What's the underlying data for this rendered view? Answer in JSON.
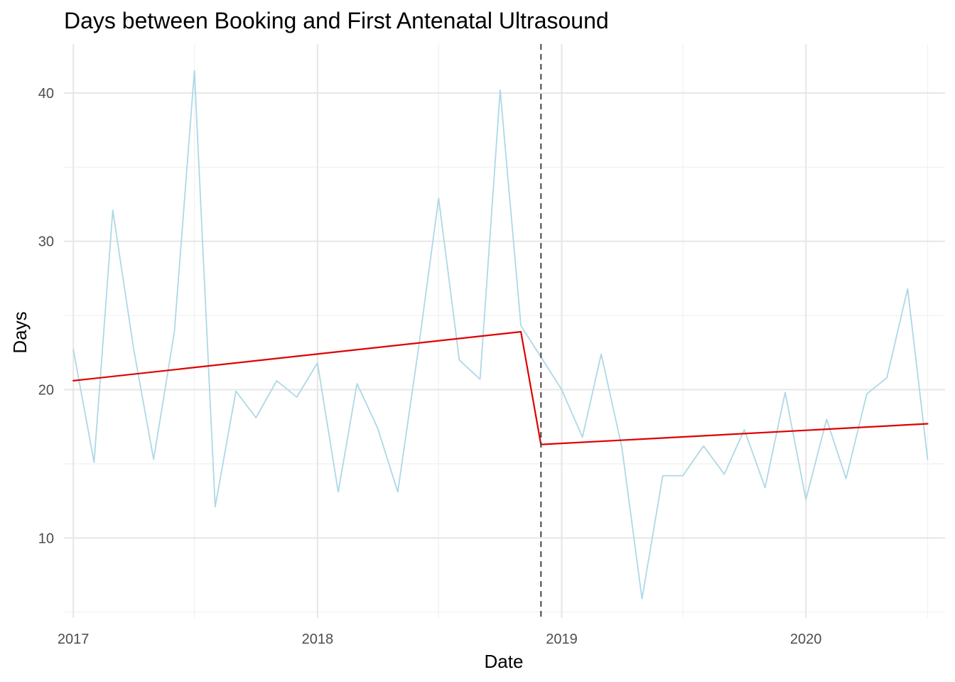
{
  "chart_data": {
    "type": "line",
    "title": "Days between Booking and First Antenatal Ultrasound",
    "xlabel": "Date",
    "ylabel": "Days",
    "x_ticks": [
      "2017",
      "2018",
      "2019",
      "2020"
    ],
    "y_ticks": [
      10,
      20,
      30,
      40
    ],
    "xlim": [
      "2016-12-18",
      "2020-07-27"
    ],
    "ylim": [
      4.6,
      43.3
    ],
    "grid": true,
    "legend": "none",
    "x": [
      "2017-01-01",
      "2017-02-01",
      "2017-03-01",
      "2017-04-01",
      "2017-05-01",
      "2017-06-01",
      "2017-07-01",
      "2017-08-01",
      "2017-09-01",
      "2017-10-01",
      "2017-11-01",
      "2017-12-01",
      "2018-01-01",
      "2018-02-01",
      "2018-03-01",
      "2018-04-01",
      "2018-05-01",
      "2018-06-01",
      "2018-07-01",
      "2018-08-01",
      "2018-09-01",
      "2018-10-01",
      "2018-11-01",
      "2018-12-01",
      "2019-01-01",
      "2019-02-01",
      "2019-03-01",
      "2019-04-01",
      "2019-05-01",
      "2019-06-01",
      "2019-07-01",
      "2019-08-01",
      "2019-09-01",
      "2019-10-01",
      "2019-11-01",
      "2019-12-01",
      "2020-01-01",
      "2020-02-01",
      "2020-03-01",
      "2020-04-01",
      "2020-05-01",
      "2020-06-01",
      "2020-07-01"
    ],
    "series": [
      {
        "kind": "observed",
        "color": "#add8e6",
        "values": [
          22.7,
          15.1,
          32.1,
          22.8,
          15.3,
          23.9,
          41.5,
          12.1,
          19.9,
          18.1,
          20.6,
          19.5,
          21.8,
          13.1,
          20.4,
          17.4,
          13.1,
          22.8,
          32.9,
          22.0,
          20.7,
          40.2,
          24.3,
          22.2,
          20.0,
          16.8,
          22.4,
          16.1,
          5.9,
          14.2,
          14.2,
          16.2,
          14.3,
          17.3,
          13.4,
          19.8,
          12.6,
          18.0,
          14.0,
          19.7,
          20.8,
          26.8,
          15.3
        ]
      },
      {
        "kind": "fitted",
        "color": "#e00000",
        "x": [
          "2017-01-01",
          "2018-11-01",
          "2018-12-01",
          "2020-07-01"
        ],
        "values": [
          20.6,
          23.9,
          16.3,
          17.7
        ]
      }
    ],
    "intervention": {
      "x": "2018-12-01",
      "line": "dashed",
      "color": "#444444"
    }
  }
}
